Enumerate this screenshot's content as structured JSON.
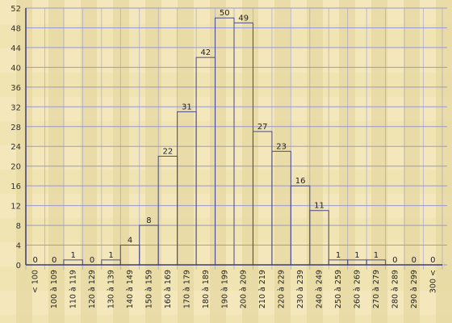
{
  "chart_data": {
    "type": "bar",
    "title": "",
    "xlabel": "",
    "ylabel": "",
    "ylim": [
      0,
      52
    ],
    "yticks": [
      0,
      4,
      8,
      12,
      16,
      20,
      24,
      28,
      32,
      36,
      40,
      44,
      48,
      52
    ],
    "grid": true,
    "categories": [
      "< 100",
      "100 à 109",
      "110 à 119",
      "120 à 129",
      "130 à 139",
      "140 à 149",
      "150 à 159",
      "160 à 169",
      "170 à 179",
      "180 à 189",
      "190 à 199",
      "200 à 209",
      "210 à 219",
      "220 à 229",
      "230 à 239",
      "240 à 249",
      "250 à 259",
      "260 à 269",
      "270 à 279",
      "280 à 289",
      "290 à 299",
      "300 <"
    ],
    "values": [
      0,
      0,
      1,
      0,
      1,
      4,
      8,
      22,
      31,
      42,
      50,
      49,
      27,
      23,
      16,
      11,
      1,
      1,
      1,
      0,
      0,
      0
    ],
    "colors": {
      "background": "#efe2b0",
      "grid": "#9a9ad0",
      "axis": "#3a3a7a",
      "bar_outline": "#4a4a8a",
      "text": "#222222"
    }
  }
}
